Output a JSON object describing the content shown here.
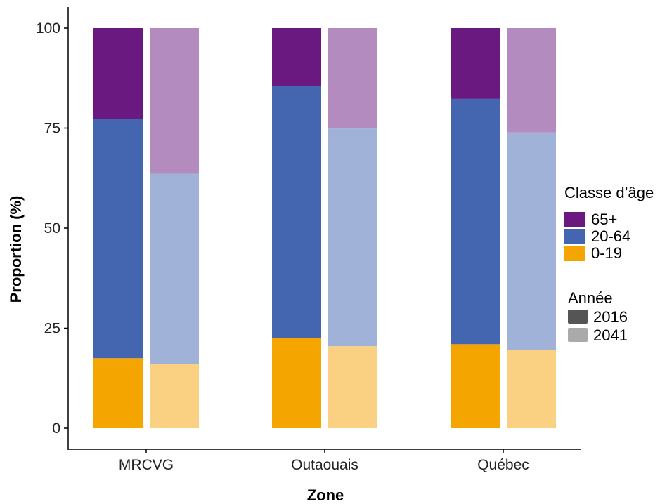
{
  "chart_data": {
    "type": "bar",
    "stacked": true,
    "title": "",
    "xlabel": "Zone",
    "ylabel": "Proportion (%)",
    "ylim": [
      0,
      100
    ],
    "yticks": [
      0,
      25,
      50,
      75,
      100
    ],
    "categories": [
      "MRCVG",
      "Outaouais",
      "Québec"
    ],
    "years": [
      "2016",
      "2041"
    ],
    "series": [
      {
        "name": "0-19",
        "color": "#F5A500",
        "color_2041": "#FAD082",
        "values_2016": [
          17.5,
          22.5,
          21.0
        ],
        "values_2041": [
          16.0,
          20.5,
          19.5
        ]
      },
      {
        "name": "20-64",
        "color": "#4466B0",
        "color_2041": "#A0B2D7",
        "values_2016": [
          59.8,
          63.0,
          61.3
        ],
        "values_2041": [
          47.6,
          54.4,
          54.4
        ]
      },
      {
        "name": "65+",
        "color": "#6A1980",
        "color_2041": "#B48BBE",
        "values_2016": [
          22.7,
          14.5,
          17.7
        ],
        "values_2041": [
          36.4,
          25.1,
          26.1
        ]
      }
    ],
    "grid": false,
    "legend_position": "right",
    "legend": {
      "title": "Classe d’âge",
      "items": [
        {
          "label": "65+",
          "color": "#6A1980"
        },
        {
          "label": "20-64",
          "color": "#4466B0"
        },
        {
          "label": "0-19",
          "color": "#F5A500"
        }
      ],
      "year_title": "Année",
      "year_items": [
        {
          "label": "2016",
          "color": "#555555"
        },
        {
          "label": "2041",
          "color": "#AAAAAA"
        }
      ]
    }
  }
}
